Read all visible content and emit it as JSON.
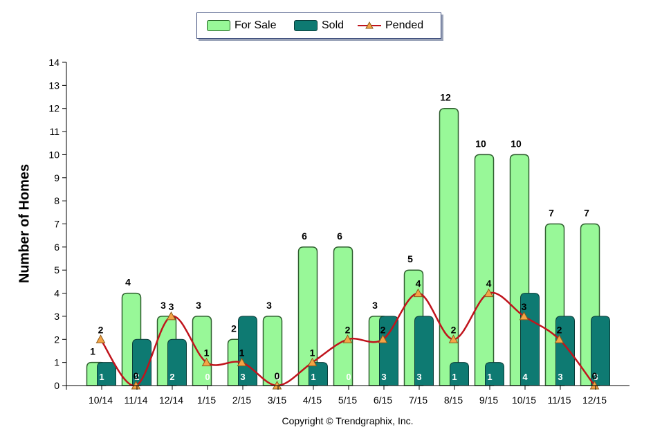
{
  "chart_data": {
    "type": "bar",
    "categories": [
      "10/14",
      "11/14",
      "12/14",
      "1/15",
      "2/15",
      "3/15",
      "4/15",
      "5/15",
      "6/15",
      "7/15",
      "8/15",
      "9/15",
      "10/15",
      "11/15",
      "12/15"
    ],
    "series": [
      {
        "name": "For Sale",
        "type": "bar",
        "color": "#98f898",
        "values": [
          1,
          4,
          3,
          3,
          2,
          3,
          6,
          6,
          3,
          5,
          12,
          10,
          10,
          7,
          7
        ]
      },
      {
        "name": "Sold",
        "type": "bar",
        "color": "#0e7a72",
        "values": [
          1,
          2,
          2,
          0,
          3,
          0,
          1,
          0,
          3,
          3,
          1,
          1,
          4,
          3,
          3
        ]
      },
      {
        "name": "Pended",
        "type": "line",
        "color": "#c0141c",
        "marker_color": "#f4a446",
        "values": [
          2,
          0,
          3,
          1,
          1,
          0,
          1,
          2,
          2,
          4,
          2,
          4,
          3,
          2,
          0
        ]
      }
    ],
    "ylabel": "Number of Homes",
    "ylim": [
      0,
      14
    ],
    "yticks": [
      0,
      1,
      2,
      3,
      4,
      5,
      6,
      7,
      8,
      9,
      10,
      11,
      12,
      13,
      14
    ],
    "legend_position": "top-center",
    "grid": false
  },
  "legend": {
    "for_sale": "For Sale",
    "sold": "Sold",
    "pended": "Pended"
  },
  "copyright": "Copyright © Trendgraphix, Inc."
}
